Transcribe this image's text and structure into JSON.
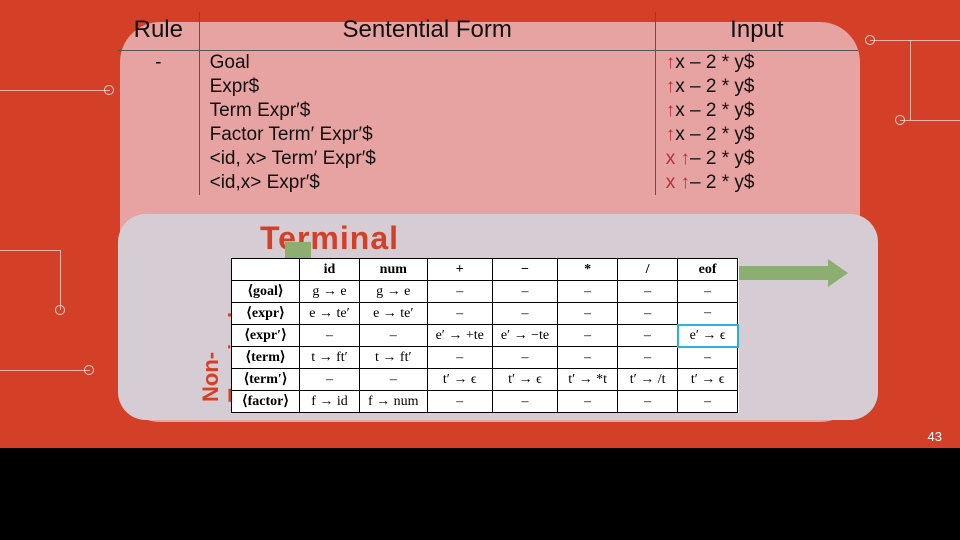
{
  "background_color": "#d44027",
  "main_card_color": "#e7a2a2",
  "overlay_card_color": "#d5cdd3",
  "arrow_color": "#8cae70",
  "highlight_border": "#2bb0e6",
  "slide_number": "43",
  "trace_table": {
    "headers": {
      "rule": "Rule",
      "sentential": "Sentential Form",
      "input": "Input"
    },
    "rows": [
      {
        "rule": "-",
        "sent": "Goal",
        "pre": "",
        "post": "x – 2 * y$"
      },
      {
        "rule": "",
        "sent": "Expr$",
        "pre": "",
        "post": "x – 2 * y$"
      },
      {
        "rule": "",
        "sent": "Term Expr′$",
        "pre": "",
        "post": "x – 2 * y$"
      },
      {
        "rule": "",
        "sent": "Factor Term′ Expr′$",
        "pre": "",
        "post": "x – 2 * y$"
      },
      {
        "rule": "",
        "sent": "<id, x> Term′ Expr′$",
        "pre": "x ",
        "post": "– 2 * y$"
      },
      {
        "rule": "",
        "sent": "<id,x>    Expr′$",
        "pre": "x ",
        "post": "– 2 * y$"
      }
    ]
  },
  "labels": {
    "terminal": "Terminal",
    "nonterminal": "Non-\nTerminal"
  },
  "parse_table": {
    "col_headers": [
      "",
      "id",
      "num",
      "+",
      "−",
      "*",
      "/",
      "eof"
    ],
    "rows": [
      {
        "nt": "⟨goal⟩",
        "cells": [
          "g → e",
          "g → e",
          "–",
          "–",
          "–",
          "–",
          "–"
        ]
      },
      {
        "nt": "⟨expr⟩",
        "cells": [
          "e → te′",
          "e → te′",
          "–",
          "–",
          "–",
          "–",
          "–"
        ]
      },
      {
        "nt": "⟨expr′⟩",
        "cells": [
          "–",
          "–",
          "e′ → +te",
          "e′ → −te",
          "–",
          "–",
          "e′ → ϵ"
        ],
        "hl": 6
      },
      {
        "nt": "⟨term⟩",
        "cells": [
          "t → ft′",
          "t → ft′",
          "–",
          "–",
          "–",
          "–",
          "–"
        ]
      },
      {
        "nt": "⟨term′⟩",
        "cells": [
          "–",
          "–",
          "t′ → ϵ",
          "t′ → ϵ",
          "t′ → *t",
          "t′ → /t",
          "t′ → ϵ"
        ]
      },
      {
        "nt": "⟨factor⟩",
        "cells": [
          "f → id",
          "f → num",
          "–",
          "–",
          "–",
          "–",
          "–"
        ]
      }
    ]
  }
}
